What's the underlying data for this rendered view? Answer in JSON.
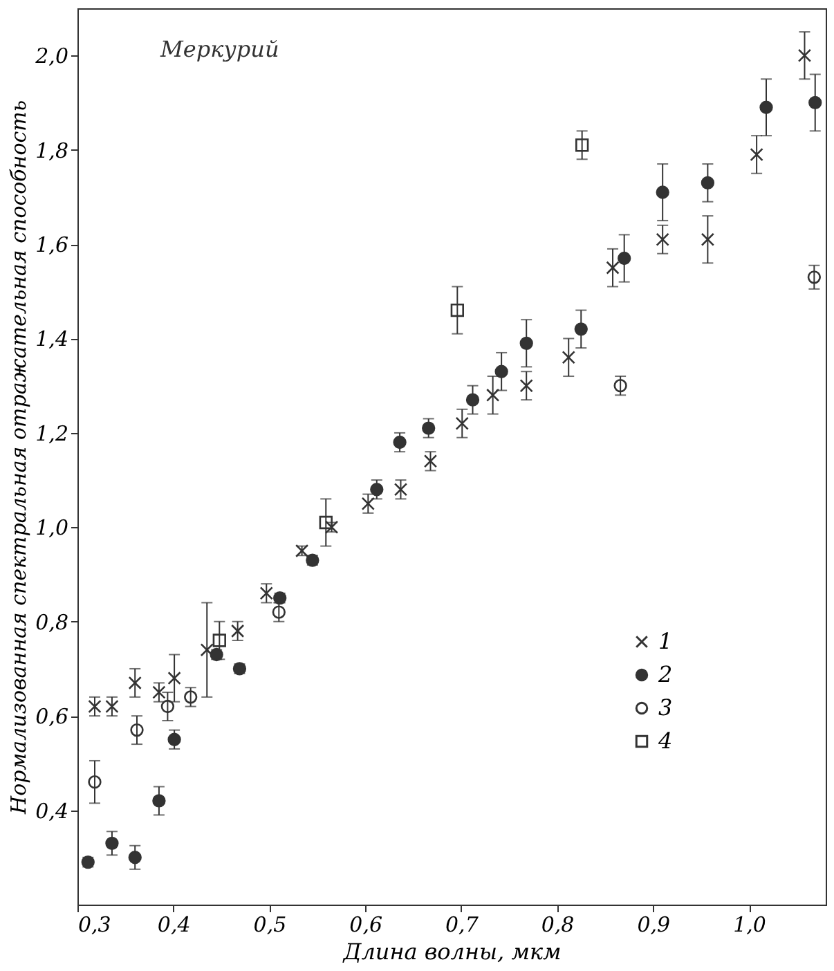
{
  "chart_data": {
    "type": "scatter",
    "annotations": [
      "Меркурий"
    ],
    "xlabel": "Длина волны, мкм",
    "ylabel": "Нормализованная спектральная отражательная способность",
    "xlim": [
      0.3,
      1.08
    ],
    "ylim": [
      0.2,
      2.1
    ],
    "xticks": [
      {
        "value": 0.3,
        "label": "0,3"
      },
      {
        "value": 0.4,
        "label": "0,4"
      },
      {
        "value": 0.5,
        "label": "0,5"
      },
      {
        "value": 0.6,
        "label": "0,6"
      },
      {
        "value": 0.7,
        "label": "0,7"
      },
      {
        "value": 0.8,
        "label": "0,8"
      },
      {
        "value": 0.9,
        "label": "0,9"
      },
      {
        "value": 1.0,
        "label": "1,0"
      }
    ],
    "yticks": [
      {
        "value": 0.4,
        "label": "0,4"
      },
      {
        "value": 0.6,
        "label": "0,6"
      },
      {
        "value": 0.8,
        "label": "0,8"
      },
      {
        "value": 1.0,
        "label": "1,0"
      },
      {
        "value": 1.2,
        "label": "1,2"
      },
      {
        "value": 1.4,
        "label": "1,4"
      },
      {
        "value": 1.6,
        "label": "1,6"
      },
      {
        "value": 1.8,
        "label": "1,8"
      },
      {
        "value": 2.0,
        "label": "2,0"
      }
    ],
    "grid": false,
    "legend": "bottom right",
    "series": [
      {
        "name": "1",
        "color": "#333333",
        "marker": "cross",
        "x": [
          0.318,
          0.336,
          0.36,
          0.385,
          0.401,
          0.435,
          0.467,
          0.497,
          0.534,
          0.565,
          0.603,
          0.637,
          0.668,
          0.701,
          0.733,
          0.768,
          0.812,
          0.858,
          0.91,
          0.957,
          1.008,
          1.058
        ],
        "values": [
          0.62,
          0.62,
          0.67,
          0.65,
          0.68,
          0.74,
          0.78,
          0.86,
          0.95,
          1.0,
          1.05,
          1.08,
          1.14,
          1.22,
          1.28,
          1.3,
          1.36,
          1.55,
          1.61,
          1.61,
          1.79,
          2.0
        ],
        "errors": [
          0.02,
          0.02,
          0.03,
          0.02,
          0.05,
          0.1,
          0.02,
          0.02,
          0.01,
          0.01,
          0.02,
          0.02,
          0.02,
          0.03,
          0.04,
          0.03,
          0.04,
          0.04,
          0.03,
          0.05,
          0.04,
          0.05
        ]
      },
      {
        "name": "2",
        "color": "#333333",
        "marker": "circle",
        "x": [
          0.311,
          0.336,
          0.36,
          0.385,
          0.401,
          0.445,
          0.469,
          0.511,
          0.545,
          0.612,
          0.636,
          0.666,
          0.712,
          0.742,
          0.768,
          0.825,
          0.87,
          0.91,
          0.957,
          1.018,
          1.069
        ],
        "values": [
          0.29,
          0.33,
          0.3,
          0.42,
          0.55,
          0.73,
          0.7,
          0.85,
          0.93,
          1.08,
          1.18,
          1.21,
          1.27,
          1.33,
          1.39,
          1.42,
          1.57,
          1.71,
          1.73,
          1.89,
          1.9
        ],
        "errors": [
          0.01,
          0.025,
          0.025,
          0.03,
          0.02,
          0.01,
          0.01,
          0.01,
          0.01,
          0.02,
          0.02,
          0.02,
          0.03,
          0.04,
          0.05,
          0.04,
          0.05,
          0.06,
          0.04,
          0.06,
          0.06
        ]
      },
      {
        "name": "3",
        "color": "#333333",
        "marker": "circle",
        "x": [
          0.318,
          0.362,
          0.394,
          0.418,
          0.51,
          0.866,
          1.068
        ],
        "values": [
          0.46,
          0.57,
          0.62,
          0.64,
          0.82,
          1.3,
          1.53
        ],
        "errors": [
          0.045,
          0.03,
          0.03,
          0.02,
          0.02,
          0.02,
          0.025
        ]
      },
      {
        "name": "4",
        "color": "#333333",
        "marker": "square",
        "x": [
          0.448,
          0.559,
          0.696,
          0.826
        ],
        "values": [
          0.76,
          1.01,
          1.46,
          1.81
        ],
        "errors": [
          0.04,
          0.05,
          0.05,
          0.03
        ]
      }
    ]
  }
}
